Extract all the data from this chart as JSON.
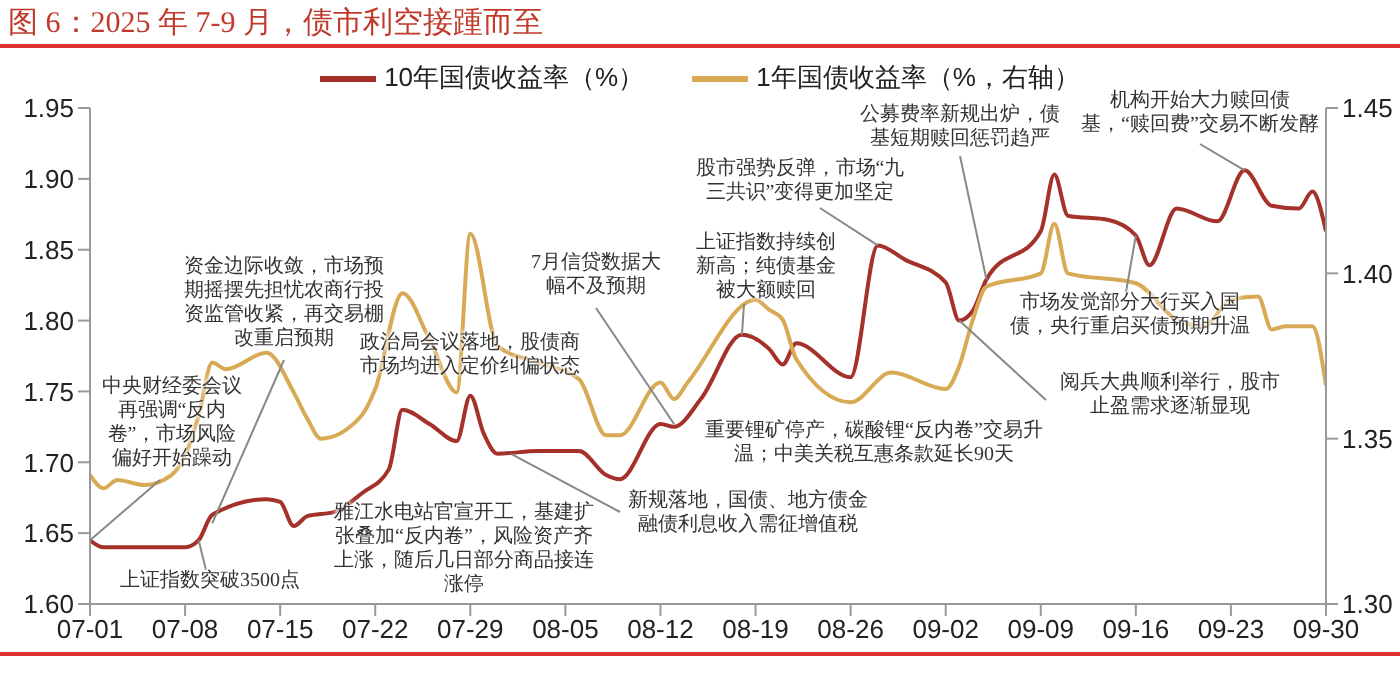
{
  "chart_data": {
    "type": "line",
    "title": "图 6：2025 年 7-9 月，债市利空接踵而至",
    "xlim": [
      "2025-07-01",
      "2025-09-30"
    ],
    "xticks": [
      {
        "value": "2025-07-01",
        "label": "07-01"
      },
      {
        "value": "2025-07-08",
        "label": "07-08"
      },
      {
        "value": "2025-07-15",
        "label": "07-15"
      },
      {
        "value": "2025-07-22",
        "label": "07-22"
      },
      {
        "value": "2025-07-29",
        "label": "07-29"
      },
      {
        "value": "2025-08-05",
        "label": "08-05"
      },
      {
        "value": "2025-08-12",
        "label": "08-12"
      },
      {
        "value": "2025-08-19",
        "label": "08-19"
      },
      {
        "value": "2025-08-26",
        "label": "08-26"
      },
      {
        "value": "2025-09-02",
        "label": "09-02"
      },
      {
        "value": "2025-09-09",
        "label": "09-09"
      },
      {
        "value": "2025-09-16",
        "label": "09-16"
      },
      {
        "value": "2025-09-23",
        "label": "09-23"
      },
      {
        "value": "2025-09-30",
        "label": "09-30"
      }
    ],
    "ylim": [
      1.6,
      1.95
    ],
    "yticks": [
      {
        "value": 1.6,
        "label": "1.60"
      },
      {
        "value": 1.65,
        "label": "1.65"
      },
      {
        "value": 1.7,
        "label": "1.70"
      },
      {
        "value": 1.75,
        "label": "1.75"
      },
      {
        "value": 1.8,
        "label": "1.80"
      },
      {
        "value": 1.85,
        "label": "1.85"
      },
      {
        "value": 1.9,
        "label": "1.90"
      },
      {
        "value": 1.95,
        "label": "1.95"
      }
    ],
    "y2lim": [
      1.3,
      1.45
    ],
    "y2ticks": [
      {
        "value": 1.3,
        "label": "1.30"
      },
      {
        "value": 1.35,
        "label": "1.35"
      },
      {
        "value": 1.4,
        "label": "1.40"
      },
      {
        "value": 1.45,
        "label": "1.45"
      }
    ],
    "legend": "top",
    "marker": "none",
    "line_style": "solid",
    "series": [
      {
        "name": "10年国债收益率（%）",
        "color": "#a5322a",
        "x": [
          "2025-07-01",
          "2025-07-02",
          "2025-07-08",
          "2025-07-09",
          "2025-07-10",
          "2025-07-14",
          "2025-07-15",
          "2025-07-16",
          "2025-07-17",
          "2025-07-19",
          "2025-07-21",
          "2025-07-23",
          "2025-07-24",
          "2025-07-26",
          "2025-07-28",
          "2025-07-29",
          "2025-07-30",
          "2025-07-31",
          "2025-08-03",
          "2025-08-06",
          "2025-08-08",
          "2025-08-09",
          "2025-08-12",
          "2025-08-13",
          "2025-08-15",
          "2025-08-18",
          "2025-08-20",
          "2025-08-21",
          "2025-08-22",
          "2025-08-26",
          "2025-08-28",
          "2025-08-30",
          "2025-09-02",
          "2025-09-03",
          "2025-09-04",
          "2025-09-05",
          "2025-09-09",
          "2025-09-10",
          "2025-09-11",
          "2025-09-14",
          "2025-09-16",
          "2025-09-17",
          "2025-09-19",
          "2025-09-22",
          "2025-09-24",
          "2025-09-26",
          "2025-09-28",
          "2025-09-29",
          "2025-09-30"
        ],
        "values": [
          1.645,
          1.64,
          1.64,
          1.645,
          1.663,
          1.674,
          1.672,
          1.655,
          1.662,
          1.665,
          1.678,
          1.695,
          1.737,
          1.727,
          1.715,
          1.747,
          1.72,
          1.706,
          1.708,
          1.708,
          1.691,
          1.688,
          1.727,
          1.725,
          1.745,
          1.79,
          1.78,
          1.769,
          1.784,
          1.76,
          1.853,
          1.843,
          1.827,
          1.8,
          1.807,
          1.829,
          1.863,
          1.903,
          1.874,
          1.871,
          1.86,
          1.839,
          1.879,
          1.87,
          1.906,
          1.881,
          1.879,
          1.891,
          1.863
        ]
      },
      {
        "name": "1年国债收益率（%，右轴）",
        "color": "#d9aa55",
        "axis": "y2",
        "x": [
          "2025-07-01",
          "2025-07-02",
          "2025-07-03",
          "2025-07-05",
          "2025-07-07",
          "2025-07-08",
          "2025-07-09",
          "2025-07-10",
          "2025-07-11",
          "2025-07-14",
          "2025-07-16",
          "2025-07-17",
          "2025-07-18",
          "2025-07-21",
          "2025-07-22",
          "2025-07-24",
          "2025-07-26",
          "2025-07-28",
          "2025-07-29",
          "2025-07-31",
          "2025-08-03",
          "2025-08-06",
          "2025-08-08",
          "2025-08-09",
          "2025-08-12",
          "2025-08-13",
          "2025-08-14",
          "2025-08-19",
          "2025-08-20",
          "2025-08-21",
          "2025-08-22",
          "2025-08-26",
          "2025-08-29",
          "2025-09-02",
          "2025-09-03",
          "2025-09-04",
          "2025-09-05",
          "2025-09-09",
          "2025-09-10",
          "2025-09-11",
          "2025-09-16",
          "2025-09-19",
          "2025-09-21",
          "2025-09-23",
          "2025-09-25",
          "2025-09-26",
          "2025-09-27",
          "2025-09-29",
          "2025-09-30"
        ],
        "values": [
          1.339,
          1.335,
          1.3375,
          1.336,
          1.339,
          1.345,
          1.357,
          1.373,
          1.371,
          1.376,
          1.364,
          1.356,
          1.35,
          1.357,
          1.365,
          1.394,
          1.38,
          1.364,
          1.412,
          1.378,
          1.373,
          1.368,
          1.351,
          1.351,
          1.367,
          1.362,
          1.367,
          1.392,
          1.389,
          1.386,
          1.374,
          1.361,
          1.37,
          1.365,
          1.372,
          1.386,
          1.396,
          1.4,
          1.415,
          1.4,
          1.397,
          1.386,
          1.384,
          1.392,
          1.393,
          1.383,
          1.384,
          1.384,
          1.366
        ]
      }
    ],
    "annotations": [
      {
        "text": "资金边际收敛，市场预期摇摆先担忧农商行投资监管收紧，再交易棚改重启预期",
        "x": "2025-07-10",
        "y": 1.657
      },
      {
        "text": "中央财经委会议再强调“反内卷”，市场风险偏好开始躁动",
        "x": "2025-07-01",
        "y": 1.645
      },
      {
        "text": "上证指数突破3500点",
        "x": "2025-07-09",
        "y": 1.645
      },
      "政治局会议落地，股债商市场均进入定价纠偏状态",
      "雅江水电站官宣开工，基建扩张叠加“反内卷”，风险资产齐上涨，随后几日部分商品接连涨停",
      {
        "text": "7月信贷数据大幅不及预期",
        "x": "2025-08-13",
        "y": 1.727
      },
      {
        "text": "新规落地，国债、地方债金融债利息收入需征增值税",
        "x": "2025-08-01",
        "y": 1.706
      },
      {
        "text": "上证指数持续创新高；纯债基金被大额赎回",
        "x": "2025-08-18",
        "y": 1.79
      },
      "重要锂矿停产，碳酸锂“反内卷”交易升温；中美关税互惠条款延长90天",
      {
        "text": "股市强势反弹，市场“九三共识”变得更加坚定",
        "x": "2025-08-28",
        "y": 1.853
      },
      {
        "text": "公募费率新规出炉，债基短期赎回惩罚趋严",
        "x": "2025-09-05",
        "y": 1.829
      },
      {
        "text": "市场发觉部分大行买入国债，央行重启买债预期升温",
        "x": "2025-09-16",
        "y": 1.86
      },
      {
        "text": "阅兵大典顺利举行，股市止盈需求逐渐显现",
        "x": "2025-09-03",
        "y": 1.8
      },
      {
        "text": "机构开始大力赎回债基，“赎回费”交易不断发酵",
        "x": "2025-09-24",
        "y": 1.906
      }
    ]
  }
}
